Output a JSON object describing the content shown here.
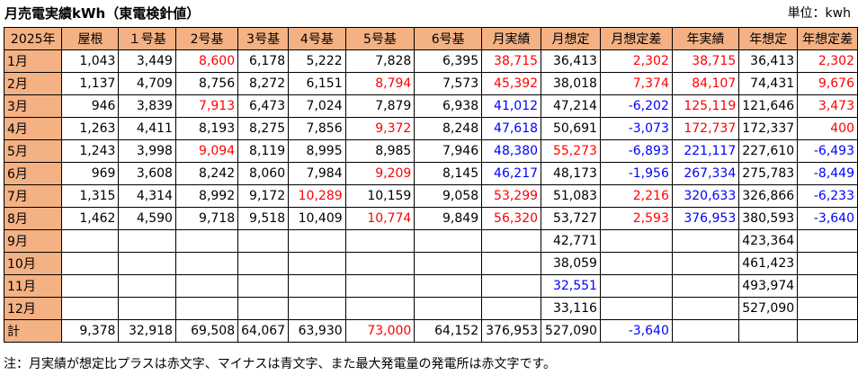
{
  "title": "月売電実績kWh（東電検針値）",
  "unit_label": "単位：kwh",
  "headers": [
    "2025年",
    "屋根",
    "１号基",
    "2号基",
    "3号基",
    "4号基",
    "5号基",
    "6号基",
    "月実績",
    "月想定",
    "月想定差",
    "年実績",
    "年想定",
    "年想定差"
  ],
  "rows": [
    {
      "label": "1月",
      "cells": [
        {
          "v": "1,043"
        },
        {
          "v": "3,449"
        },
        {
          "v": "8,600",
          "c": "red"
        },
        {
          "v": "6,178"
        },
        {
          "v": "5,222"
        },
        {
          "v": "7,828"
        },
        {
          "v": "6,395"
        },
        {
          "v": "38,715",
          "c": "red"
        },
        {
          "v": "36,413"
        },
        {
          "v": "2,302",
          "c": "red"
        },
        {
          "v": "38,715",
          "c": "red"
        },
        {
          "v": "36,413"
        },
        {
          "v": "2,302",
          "c": "red"
        }
      ]
    },
    {
      "label": "2月",
      "cells": [
        {
          "v": "1,137"
        },
        {
          "v": "4,709"
        },
        {
          "v": "8,756"
        },
        {
          "v": "8,272"
        },
        {
          "v": "6,151"
        },
        {
          "v": "8,794",
          "c": "red"
        },
        {
          "v": "7,573"
        },
        {
          "v": "45,392",
          "c": "red"
        },
        {
          "v": "38,018"
        },
        {
          "v": "7,374",
          "c": "red"
        },
        {
          "v": "84,107",
          "c": "red"
        },
        {
          "v": "74,431"
        },
        {
          "v": "9,676",
          "c": "red"
        }
      ]
    },
    {
      "label": "3月",
      "cells": [
        {
          "v": "946"
        },
        {
          "v": "3,839"
        },
        {
          "v": "7,913",
          "c": "red"
        },
        {
          "v": "6,473"
        },
        {
          "v": "7,024"
        },
        {
          "v": "7,879"
        },
        {
          "v": "6,938"
        },
        {
          "v": "41,012",
          "c": "blue"
        },
        {
          "v": "47,214"
        },
        {
          "v": "-6,202",
          "c": "blue"
        },
        {
          "v": "125,119",
          "c": "red"
        },
        {
          "v": "121,646"
        },
        {
          "v": "3,473",
          "c": "red"
        }
      ]
    },
    {
      "label": "4月",
      "cells": [
        {
          "v": "1,263"
        },
        {
          "v": "4,411"
        },
        {
          "v": "8,193"
        },
        {
          "v": "8,275"
        },
        {
          "v": "7,856"
        },
        {
          "v": "9,372",
          "c": "red"
        },
        {
          "v": "8,248"
        },
        {
          "v": "47,618",
          "c": "blue"
        },
        {
          "v": "50,691"
        },
        {
          "v": "-3,073",
          "c": "blue"
        },
        {
          "v": "172,737",
          "c": "red"
        },
        {
          "v": "172,337"
        },
        {
          "v": "400",
          "c": "red"
        }
      ]
    },
    {
      "label": "5月",
      "cells": [
        {
          "v": "1,243"
        },
        {
          "v": "3,998"
        },
        {
          "v": "9,094",
          "c": "red"
        },
        {
          "v": "8,119"
        },
        {
          "v": "8,995"
        },
        {
          "v": "8,985"
        },
        {
          "v": "7,946"
        },
        {
          "v": "48,380",
          "c": "blue"
        },
        {
          "v": "55,273",
          "c": "red"
        },
        {
          "v": "-6,893",
          "c": "blue"
        },
        {
          "v": "221,117",
          "c": "blue"
        },
        {
          "v": "227,610"
        },
        {
          "v": "-6,493",
          "c": "blue"
        }
      ]
    },
    {
      "label": "6月",
      "cells": [
        {
          "v": "969"
        },
        {
          "v": "3,608"
        },
        {
          "v": "8,242"
        },
        {
          "v": "8,060"
        },
        {
          "v": "7,984"
        },
        {
          "v": "9,209",
          "c": "red"
        },
        {
          "v": "8,145"
        },
        {
          "v": "46,217",
          "c": "blue"
        },
        {
          "v": "48,173"
        },
        {
          "v": "-1,956",
          "c": "blue"
        },
        {
          "v": "267,334",
          "c": "blue"
        },
        {
          "v": "275,783"
        },
        {
          "v": "-8,449",
          "c": "blue"
        }
      ]
    },
    {
      "label": "7月",
      "cells": [
        {
          "v": "1,315"
        },
        {
          "v": "4,314"
        },
        {
          "v": "8,992"
        },
        {
          "v": "9,172"
        },
        {
          "v": "10,289",
          "c": "red"
        },
        {
          "v": "10,159"
        },
        {
          "v": "9,058"
        },
        {
          "v": "53,299",
          "c": "red"
        },
        {
          "v": "51,083"
        },
        {
          "v": "2,216",
          "c": "red"
        },
        {
          "v": "320,633",
          "c": "blue"
        },
        {
          "v": "326,866"
        },
        {
          "v": "-6,233",
          "c": "blue"
        }
      ]
    },
    {
      "label": "8月",
      "cells": [
        {
          "v": "1,462"
        },
        {
          "v": "4,590"
        },
        {
          "v": "9,718"
        },
        {
          "v": "9,518"
        },
        {
          "v": "10,409"
        },
        {
          "v": "10,774",
          "c": "red"
        },
        {
          "v": "9,849"
        },
        {
          "v": "56,320",
          "c": "red"
        },
        {
          "v": "53,727"
        },
        {
          "v": "2,593",
          "c": "red"
        },
        {
          "v": "376,953",
          "c": "blue"
        },
        {
          "v": "380,593"
        },
        {
          "v": "-3,640",
          "c": "blue"
        }
      ]
    },
    {
      "label": "9月",
      "cells": [
        {
          "v": ""
        },
        {
          "v": ""
        },
        {
          "v": ""
        },
        {
          "v": ""
        },
        {
          "v": ""
        },
        {
          "v": ""
        },
        {
          "v": ""
        },
        {
          "v": ""
        },
        {
          "v": "42,771"
        },
        {
          "v": ""
        },
        {
          "v": ""
        },
        {
          "v": "423,364"
        },
        {
          "v": ""
        }
      ]
    },
    {
      "label": "10月",
      "cells": [
        {
          "v": ""
        },
        {
          "v": ""
        },
        {
          "v": ""
        },
        {
          "v": ""
        },
        {
          "v": ""
        },
        {
          "v": ""
        },
        {
          "v": ""
        },
        {
          "v": ""
        },
        {
          "v": "38,059"
        },
        {
          "v": ""
        },
        {
          "v": ""
        },
        {
          "v": "461,423"
        },
        {
          "v": ""
        }
      ]
    },
    {
      "label": "11月",
      "cells": [
        {
          "v": ""
        },
        {
          "v": ""
        },
        {
          "v": ""
        },
        {
          "v": ""
        },
        {
          "v": ""
        },
        {
          "v": ""
        },
        {
          "v": ""
        },
        {
          "v": ""
        },
        {
          "v": "32,551",
          "c": "blue"
        },
        {
          "v": ""
        },
        {
          "v": ""
        },
        {
          "v": "493,974"
        },
        {
          "v": ""
        }
      ]
    },
    {
      "label": "12月",
      "cells": [
        {
          "v": ""
        },
        {
          "v": ""
        },
        {
          "v": ""
        },
        {
          "v": ""
        },
        {
          "v": ""
        },
        {
          "v": ""
        },
        {
          "v": ""
        },
        {
          "v": ""
        },
        {
          "v": "33,116"
        },
        {
          "v": ""
        },
        {
          "v": ""
        },
        {
          "v": "527,090"
        },
        {
          "v": ""
        }
      ]
    },
    {
      "label": "計",
      "cells": [
        {
          "v": "9,378"
        },
        {
          "v": "32,918"
        },
        {
          "v": "69,508"
        },
        {
          "v": "64,067"
        },
        {
          "v": "63,930"
        },
        {
          "v": "73,000",
          "c": "red"
        },
        {
          "v": "64,152"
        },
        {
          "v": "376,953"
        },
        {
          "v": "527,090"
        },
        {
          "v": "-3,640",
          "c": "blue"
        },
        {
          "v": ""
        },
        {
          "v": ""
        },
        {
          "v": ""
        }
      ]
    }
  ],
  "note": "注：月実績が想定比プラスは赤文字、マイナスは青文字、また最大発電量の発電所は赤文字です。"
}
